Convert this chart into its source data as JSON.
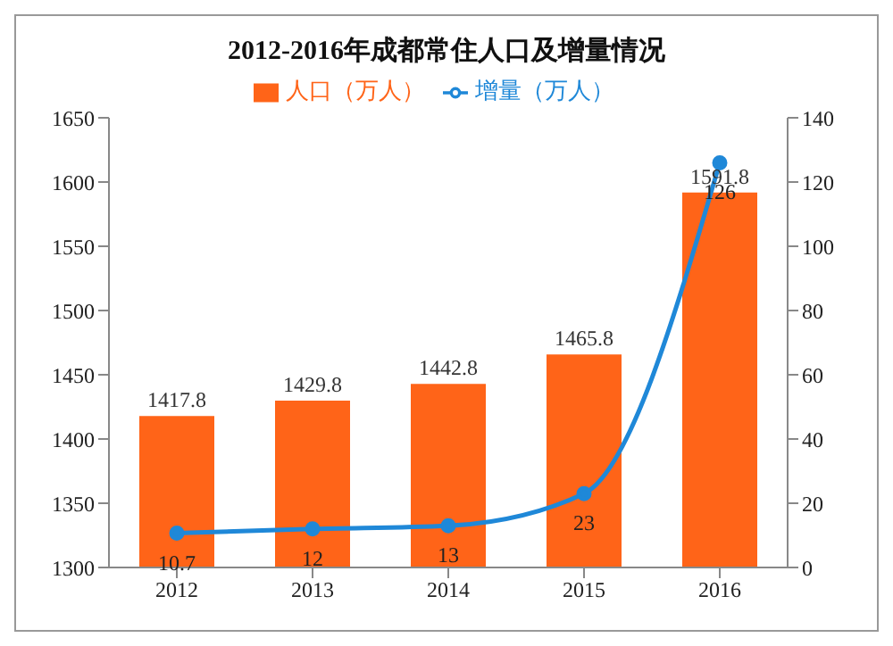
{
  "chart_data": {
    "type": "bar",
    "title": "2012-2016年成都常住人口及增量情况",
    "categories": [
      "2012",
      "2013",
      "2014",
      "2015",
      "2016"
    ],
    "series": [
      {
        "name": "人口（万人）",
        "color": "#ff6418",
        "values": [
          1417.8,
          1429.8,
          1442.8,
          1465.8,
          1591.8
        ]
      },
      {
        "name": "增量（万人）",
        "type": "line",
        "axis": "y2",
        "color": "#1f88d8",
        "values": [
          10.7,
          12,
          13,
          23,
          126
        ],
        "marker": "circle"
      }
    ],
    "ylim": [
      1300,
      1650
    ],
    "yticks": [
      1300,
      1350,
      1400,
      1450,
      1500,
      1550,
      1600,
      1650
    ],
    "y2lim": [
      0,
      140
    ],
    "y2ticks": [
      0,
      20,
      40,
      60,
      80,
      100,
      120,
      140
    ],
    "data_labels": true,
    "grid": false,
    "legend": "top"
  }
}
